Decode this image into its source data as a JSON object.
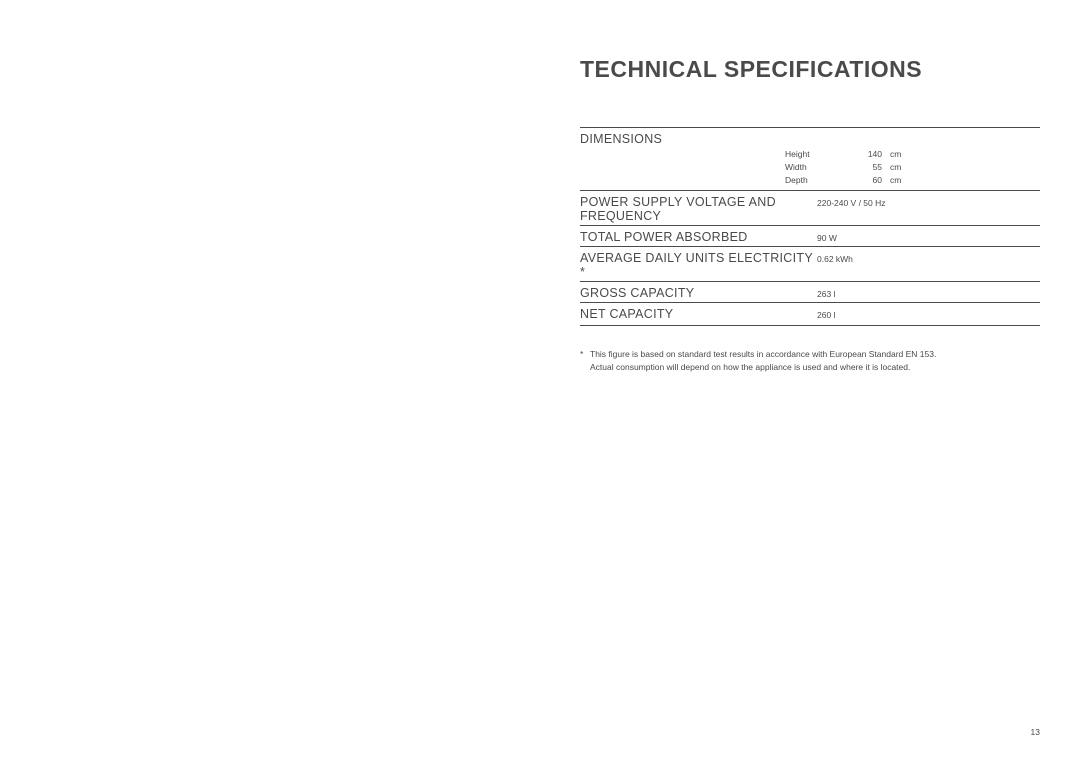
{
  "title": "TECHNICAL SPECIFICATIONS",
  "dimensions": {
    "header": "DIMENSIONS",
    "rows": [
      {
        "label": "Height",
        "value": "140",
        "unit": "cm"
      },
      {
        "label": "Width",
        "value": "55",
        "unit": "cm"
      },
      {
        "label": "Depth",
        "value": "60",
        "unit": "cm"
      }
    ]
  },
  "specs": [
    {
      "label": "POWER SUPPLY VOLTAGE AND FREQUENCY",
      "value": "220-240 V / 50 Hz"
    },
    {
      "label": "TOTAL POWER ABSORBED",
      "value": "90 W"
    },
    {
      "label": "AVERAGE DAILY UNITS ELECTRICITY *",
      "value": "0.62 kWh"
    },
    {
      "label": "GROSS CAPACITY",
      "value": "263 l"
    },
    {
      "label": "NET CAPACITY",
      "value": "260 l"
    }
  ],
  "footnote": {
    "marker": "*",
    "line1": "This figure is based on standard test results in accordance with European Standard EN 153.",
    "line2": "Actual consumption will depend on how the appliance is used and where it is located."
  },
  "page_number": "13",
  "style": {
    "background_color": "#ffffff",
    "text_color": "#4a4a4a",
    "rule_color": "#4a4a4a",
    "title_fontsize": 23,
    "header_fontsize": 12.5,
    "body_fontsize": 8.5,
    "font_family": "Arial, Helvetica, sans-serif"
  }
}
